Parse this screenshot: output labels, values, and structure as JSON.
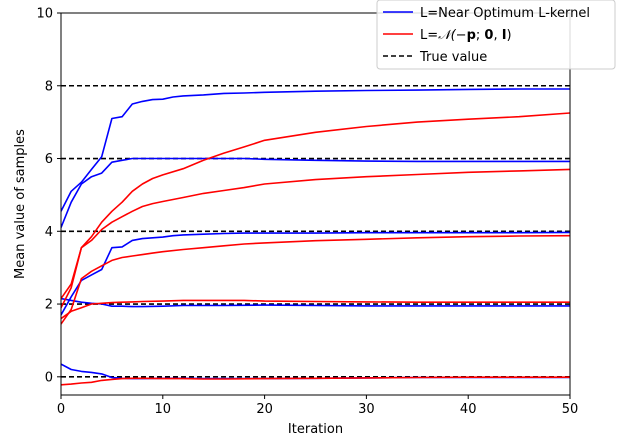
{
  "chart_data": {
    "type": "line",
    "xlabel": "Iteration",
    "ylabel": "Mean value of samples",
    "xlim": [
      0,
      50
    ],
    "ylim": [
      -0.5,
      10
    ],
    "xticks": [
      0,
      10,
      20,
      30,
      40,
      50
    ],
    "yticks": [
      0,
      2,
      4,
      6,
      8,
      10
    ],
    "grid": false,
    "legend": {
      "placement": "top-right",
      "entries": [
        {
          "label": "L=Near Optimum L-kernel",
          "color": "#0000ff",
          "style": "solid"
        },
        {
          "label_prefix": "L=",
          "label_math": "𝒩(−",
          "label_bold_p": "p",
          "label_sep": "; ",
          "label_bold_0": "0",
          "label_comma": ", ",
          "label_bold_I": "I",
          "label_close": ")",
          "color": "#ff0000",
          "style": "solid"
        },
        {
          "label": "True value",
          "color": "#000000",
          "style": "dashed"
        }
      ]
    },
    "true_values": [
      0,
      2,
      4,
      6,
      8
    ],
    "series": [
      {
        "group": "near-optimum",
        "color": "#0000ff",
        "x": [
          0,
          1,
          2,
          3,
          4,
          5,
          6,
          7,
          8,
          9,
          10,
          11,
          12,
          14,
          16,
          18,
          20,
          25,
          30,
          35,
          40,
          45,
          50
        ],
        "values": [
          4.1,
          4.8,
          5.3,
          5.5,
          5.6,
          5.9,
          5.95,
          6.0,
          6.0,
          6.0,
          6.0,
          6.0,
          6.0,
          6.0,
          6.0,
          6.0,
          5.98,
          5.95,
          5.93,
          5.92,
          5.92,
          5.92,
          5.92
        ]
      },
      {
        "group": "near-optimum",
        "color": "#0000ff",
        "x": [
          0,
          1,
          2,
          3,
          4,
          5,
          6,
          7,
          8,
          9,
          10,
          11,
          12,
          14,
          16,
          18,
          20,
          25,
          30,
          35,
          40,
          45,
          50
        ],
        "values": [
          4.55,
          5.1,
          5.35,
          5.7,
          6.05,
          7.1,
          7.15,
          7.5,
          7.57,
          7.62,
          7.63,
          7.69,
          7.72,
          7.75,
          7.79,
          7.8,
          7.82,
          7.85,
          7.87,
          7.88,
          7.9,
          7.91,
          7.91
        ]
      },
      {
        "group": "near-optimum",
        "color": "#0000ff",
        "x": [
          0,
          1,
          2,
          3,
          4,
          5,
          6,
          7,
          8,
          9,
          10,
          11,
          12,
          14,
          16,
          18,
          20,
          25,
          30,
          35,
          40,
          45,
          50
        ],
        "values": [
          1.7,
          2.2,
          2.65,
          2.8,
          2.95,
          3.55,
          3.57,
          3.75,
          3.8,
          3.82,
          3.84,
          3.88,
          3.9,
          3.92,
          3.94,
          3.95,
          3.95,
          3.95,
          3.96,
          3.96,
          3.96,
          3.96,
          3.97
        ]
      },
      {
        "group": "near-optimum",
        "color": "#0000ff",
        "x": [
          0,
          1,
          2,
          3,
          4,
          5,
          6,
          7,
          8,
          10,
          12,
          14,
          16,
          20,
          25,
          30,
          35,
          40,
          45,
          50
        ],
        "values": [
          2.15,
          2.1,
          2.05,
          2.02,
          2.0,
          1.94,
          1.94,
          1.93,
          1.93,
          1.94,
          1.96,
          1.96,
          1.96,
          1.97,
          1.96,
          1.95,
          1.95,
          1.95,
          1.95,
          1.95
        ]
      },
      {
        "group": "near-optimum",
        "color": "#0000ff",
        "x": [
          0,
          1,
          2,
          3,
          4,
          5,
          6,
          7,
          8,
          10,
          12,
          14,
          16,
          20,
          25,
          30,
          35,
          40,
          45,
          50
        ],
        "values": [
          0.35,
          0.2,
          0.15,
          0.12,
          0.08,
          -0.02,
          -0.04,
          -0.05,
          -0.05,
          -0.04,
          -0.04,
          -0.05,
          -0.05,
          -0.05,
          -0.04,
          -0.03,
          -0.02,
          -0.02,
          -0.02,
          -0.02
        ]
      },
      {
        "group": "gaussian",
        "color": "#ff0000",
        "x": [
          0,
          1,
          2,
          3,
          4,
          5,
          6,
          7,
          8,
          9,
          10,
          12,
          14,
          16,
          18,
          20,
          25,
          30,
          35,
          40,
          45,
          50
        ],
        "values": [
          2.15,
          2.55,
          3.55,
          3.85,
          4.25,
          4.55,
          4.8,
          5.1,
          5.3,
          5.45,
          5.55,
          5.72,
          5.95,
          6.15,
          6.32,
          6.5,
          6.72,
          6.88,
          7.0,
          7.08,
          7.15,
          7.25
        ]
      },
      {
        "group": "gaussian",
        "color": "#ff0000",
        "x": [
          0,
          1,
          2,
          3,
          4,
          5,
          6,
          7,
          8,
          9,
          10,
          12,
          14,
          16,
          18,
          20,
          25,
          30,
          35,
          40,
          45,
          50
        ],
        "values": [
          1.9,
          2.45,
          3.55,
          3.75,
          4.05,
          4.25,
          4.4,
          4.55,
          4.68,
          4.76,
          4.82,
          4.93,
          5.04,
          5.12,
          5.2,
          5.3,
          5.42,
          5.5,
          5.56,
          5.62,
          5.66,
          5.7
        ]
      },
      {
        "group": "gaussian",
        "color": "#ff0000",
        "x": [
          0,
          1,
          2,
          3,
          4,
          5,
          6,
          7,
          8,
          9,
          10,
          12,
          14,
          16,
          18,
          20,
          25,
          30,
          35,
          40,
          45,
          50
        ],
        "values": [
          1.45,
          1.85,
          2.7,
          2.9,
          3.05,
          3.2,
          3.28,
          3.32,
          3.36,
          3.4,
          3.44,
          3.5,
          3.55,
          3.6,
          3.65,
          3.68,
          3.74,
          3.78,
          3.82,
          3.85,
          3.87,
          3.88
        ]
      },
      {
        "group": "gaussian",
        "color": "#ff0000",
        "x": [
          0,
          1,
          2,
          3,
          4,
          5,
          6,
          7,
          8,
          10,
          12,
          14,
          16,
          18,
          20,
          25,
          30,
          35,
          40,
          45,
          50
        ],
        "values": [
          1.6,
          1.8,
          1.9,
          2.0,
          2.02,
          2.04,
          2.05,
          2.06,
          2.07,
          2.08,
          2.1,
          2.1,
          2.1,
          2.1,
          2.08,
          2.07,
          2.06,
          2.05,
          2.05,
          2.05,
          2.05
        ]
      },
      {
        "group": "gaussian",
        "color": "#ff0000",
        "x": [
          0,
          1,
          2,
          3,
          4,
          5,
          6,
          7,
          8,
          10,
          12,
          14,
          16,
          20,
          25,
          30,
          35,
          40,
          45,
          50
        ],
        "values": [
          -0.22,
          -0.2,
          -0.17,
          -0.15,
          -0.1,
          -0.07,
          -0.05,
          -0.04,
          -0.04,
          -0.05,
          -0.05,
          -0.06,
          -0.06,
          -0.05,
          -0.04,
          -0.03,
          -0.02,
          -0.01,
          -0.01,
          -0.01
        ]
      }
    ]
  }
}
